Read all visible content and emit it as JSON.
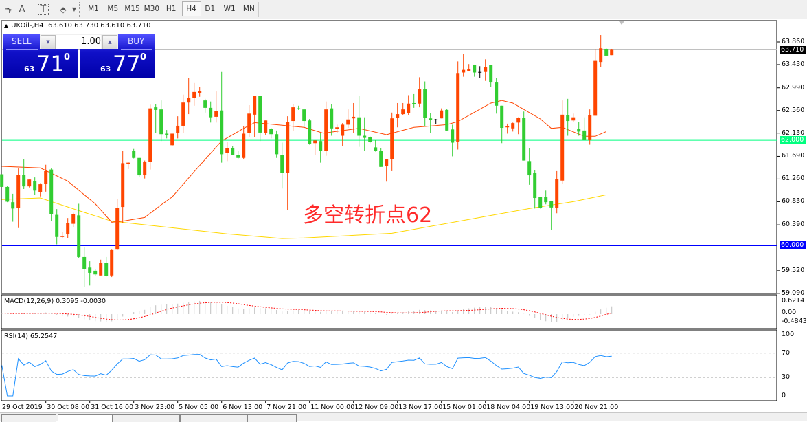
{
  "toolbar": {
    "icons": [
      "period-separator-icon",
      "text-icon",
      "text-label-icon",
      "arrows-icon"
    ],
    "text_icon_glyph": "A",
    "label_icon_glyph": "T",
    "timeframes": [
      "M1",
      "M5",
      "M15",
      "M30",
      "H1",
      "H4",
      "D1",
      "W1",
      "MN"
    ],
    "active_timeframe": "H4"
  },
  "chart": {
    "symbol": "UKOil-,H4",
    "ohlc_text": "63.610 63.730 63.610 63.710"
  },
  "trade_panel": {
    "sell_label": "SELL",
    "buy_label": "BUY",
    "lot": "1.00",
    "sell_big": "71",
    "sell_small": "63",
    "sell_sup": "0",
    "buy_big": "77",
    "buy_small": "63",
    "buy_sup": "0"
  },
  "annotation": "多空转折点62",
  "colors": {
    "bull": "#ff4500",
    "bear": "#32cd32",
    "ma_fast": "#ff4500",
    "ma_slow": "#ffd700",
    "level_62": "#00ff7f",
    "level_60": "#0000ff",
    "panel_bg": "#0000a8"
  },
  "chart_data": {
    "type": "candlestick",
    "price_axis": {
      "ticks": [
        "63.860",
        "63.430",
        "62.990",
        "62.560",
        "62.130",
        "61.690",
        "61.260",
        "60.830",
        "60.390",
        "59.520",
        "59.090"
      ],
      "range": [
        59.09,
        63.86
      ]
    },
    "price_tags": [
      {
        "value": "63.710",
        "kind": "bid"
      },
      {
        "value": "62.000",
        "kind": "level_62"
      },
      {
        "value": "60.000",
        "kind": "level_60"
      }
    ],
    "horizontal_lines": [
      {
        "price": 62.0,
        "color": "#00ff7f"
      },
      {
        "price": 60.0,
        "color": "#0000ff"
      },
      {
        "price": 63.71,
        "color": "#c0c0c0"
      }
    ],
    "time_labels": [
      "29 Oct 2019",
      "30 Oct 08:00",
      "31 Oct 16:00",
      "3 Nov 23:00",
      "5 Nov 05:00",
      "6 Nov 13:00",
      "7 Nov 21:00",
      "11 Nov 00:00",
      "12 Nov 09:00",
      "13 Nov 17:00",
      "15 Nov 01:00",
      "18 Nov 04:00",
      "19 Nov 13:00",
      "20 Nov 21:00"
    ],
    "candles_ohlc": [
      [
        61.35,
        61.35,
        61.11,
        61.11
      ],
      [
        61.11,
        61.13,
        60.82,
        60.83
      ],
      [
        60.82,
        60.98,
        60.45,
        60.7
      ],
      [
        60.71,
        61.46,
        60.33,
        61.34
      ],
      [
        61.34,
        61.63,
        61.07,
        61.12
      ],
      [
        61.12,
        61.25,
        61.1,
        61.25
      ],
      [
        61.22,
        61.29,
        60.96,
        61.04
      ],
      [
        61.01,
        61.18,
        60.93,
        61.16
      ],
      [
        61.17,
        61.53,
        61.02,
        61.41
      ],
      [
        61.44,
        61.46,
        60.46,
        60.59
      ],
      [
        60.58,
        60.69,
        60.02,
        60.16
      ],
      [
        60.16,
        60.26,
        60.13,
        60.18
      ],
      [
        60.21,
        60.52,
        60.14,
        60.42
      ],
      [
        60.41,
        60.62,
        60.34,
        60.59
      ],
      [
        60.57,
        60.79,
        59.76,
        59.78
      ],
      [
        59.78,
        59.96,
        59.21,
        59.55
      ],
      [
        59.58,
        59.7,
        59.24,
        59.48
      ],
      [
        59.52,
        59.55,
        59.42,
        59.45
      ],
      [
        59.43,
        59.73,
        59.43,
        59.67
      ],
      [
        59.67,
        59.78,
        59.41,
        59.42
      ],
      [
        59.43,
        59.92,
        59.4,
        59.91
      ],
      [
        59.92,
        60.88,
        59.91,
        60.71
      ],
      [
        60.73,
        61.8,
        60.42,
        61.56
      ],
      [
        61.55,
        61.59,
        61.45,
        61.57
      ],
      [
        61.79,
        61.83,
        61.65,
        61.66
      ],
      [
        61.66,
        61.66,
        61.3,
        61.33
      ],
      [
        61.34,
        61.61,
        61.27,
        61.59
      ],
      [
        61.58,
        62.67,
        61.44,
        62.6
      ],
      [
        62.62,
        62.68,
        62.13,
        62.57
      ],
      [
        62.58,
        62.75,
        61.98,
        62.11
      ],
      [
        62.12,
        62.19,
        62.03,
        62.1
      ],
      [
        61.9,
        62.12,
        61.89,
        62.12
      ],
      [
        62.13,
        62.45,
        62.03,
        62.27
      ],
      [
        62.27,
        62.86,
        62.13,
        62.71
      ],
      [
        62.71,
        63.17,
        62.49,
        62.8
      ],
      [
        62.8,
        63.08,
        62.65,
        62.91
      ],
      [
        62.89,
        63.0,
        62.82,
        62.93
      ],
      [
        62.75,
        62.78,
        62.52,
        62.61
      ],
      [
        62.61,
        62.73,
        62.33,
        62.43
      ],
      [
        62.44,
        62.92,
        62.33,
        62.55
      ],
      [
        62.56,
        63.29,
        61.57,
        61.73
      ],
      [
        61.75,
        61.97,
        61.6,
        61.84
      ],
      [
        61.84,
        61.88,
        61.72,
        61.72
      ],
      [
        61.72,
        61.8,
        61.63,
        61.66
      ],
      [
        61.66,
        62.26,
        61.63,
        62.12
      ],
      [
        62.13,
        62.66,
        62.05,
        62.5
      ],
      [
        62.48,
        62.83,
        62.05,
        62.83
      ],
      [
        62.83,
        62.83,
        61.98,
        62.14
      ],
      [
        62.13,
        62.37,
        62.1,
        62.37
      ],
      [
        62.21,
        62.23,
        62.03,
        62.11
      ],
      [
        62.11,
        62.18,
        61.66,
        61.73
      ],
      [
        61.72,
        61.95,
        61.08,
        61.37
      ],
      [
        61.37,
        62.45,
        60.67,
        62.34
      ],
      [
        62.36,
        62.68,
        62.17,
        62.62
      ],
      [
        62.6,
        62.65,
        62.57,
        62.59
      ],
      [
        62.58,
        62.58,
        62.24,
        62.36
      ],
      [
        62.37,
        62.4,
        61.91,
        61.92
      ],
      [
        61.94,
        61.99,
        61.71,
        61.99
      ],
      [
        61.98,
        62.13,
        61.57,
        61.79
      ],
      [
        61.79,
        62.73,
        61.7,
        62.58
      ],
      [
        62.6,
        62.68,
        62.08,
        62.22
      ],
      [
        62.21,
        62.29,
        62.13,
        62.24
      ],
      [
        62.08,
        62.32,
        61.88,
        62.29
      ],
      [
        62.29,
        62.58,
        62.23,
        62.39
      ],
      [
        62.41,
        62.7,
        62.13,
        62.44
      ],
      [
        62.43,
        62.83,
        61.87,
        62.08
      ],
      [
        62.08,
        62.43,
        61.8,
        62.04
      ],
      [
        62.05,
        62.07,
        61.94,
        61.96
      ],
      [
        61.86,
        62.0,
        61.78,
        61.79
      ],
      [
        61.8,
        61.85,
        61.49,
        61.49
      ],
      [
        61.5,
        61.64,
        61.21,
        61.63
      ],
      [
        61.64,
        62.52,
        61.41,
        62.41
      ],
      [
        62.42,
        62.7,
        62.24,
        62.49
      ],
      [
        62.49,
        62.7,
        62.47,
        62.58
      ],
      [
        62.51,
        62.85,
        62.47,
        62.69
      ],
      [
        62.7,
        62.87,
        62.61,
        62.68
      ],
      [
        62.69,
        63.19,
        62.62,
        62.96
      ],
      [
        62.96,
        63.11,
        62.26,
        62.42
      ],
      [
        62.41,
        62.51,
        62.13,
        62.38
      ],
      [
        62.39,
        62.4,
        62.3,
        62.39
      ],
      [
        62.41,
        62.6,
        62.41,
        62.56
      ],
      [
        62.57,
        62.59,
        62.17,
        62.18
      ],
      [
        62.2,
        62.29,
        61.69,
        61.95
      ],
      [
        61.97,
        63.49,
        61.82,
        63.27
      ],
      [
        63.28,
        63.63,
        63.2,
        63.33
      ],
      [
        63.3,
        63.44,
        63.3,
        63.35
      ],
      [
        63.43,
        63.43,
        63.2,
        63.28
      ],
      [
        63.28,
        63.4,
        63.18,
        63.29
      ],
      [
        63.29,
        63.53,
        63.12,
        63.39
      ],
      [
        63.42,
        63.43,
        63.0,
        63.09
      ],
      [
        63.09,
        63.17,
        62.5,
        62.65
      ],
      [
        62.65,
        62.65,
        61.94,
        62.23
      ],
      [
        62.24,
        62.31,
        62.12,
        62.26
      ],
      [
        62.22,
        62.33,
        62.16,
        62.32
      ],
      [
        62.33,
        62.43,
        62.11,
        62.42
      ],
      [
        62.42,
        62.54,
        61.61,
        61.61
      ],
      [
        61.6,
        61.84,
        61.15,
        61.33
      ],
      [
        61.37,
        61.43,
        60.7,
        60.9
      ],
      [
        60.92,
        60.92,
        60.7,
        60.71
      ],
      [
        60.92,
        61.04,
        60.78,
        60.82
      ],
      [
        60.84,
        60.84,
        60.29,
        60.72
      ],
      [
        60.71,
        61.41,
        60.61,
        61.26
      ],
      [
        61.23,
        62.75,
        61.17,
        62.48
      ],
      [
        62.47,
        62.78,
        62.08,
        62.36
      ],
      [
        62.37,
        62.5,
        62.34,
        62.43
      ],
      [
        62.21,
        62.34,
        62.08,
        62.16
      ],
      [
        62.18,
        62.43,
        62.01,
        62.01
      ],
      [
        62.01,
        62.58,
        61.91,
        62.47
      ],
      [
        62.46,
        63.73,
        62.46,
        63.5
      ],
      [
        63.48,
        63.99,
        63.38,
        63.74
      ],
      [
        63.73,
        63.74,
        63.6,
        63.6
      ],
      [
        63.61,
        63.73,
        63.61,
        63.71
      ]
    ],
    "doji_black_candles": [
      80,
      88
    ],
    "ma_fast_points": [
      [
        1,
        61.5
      ],
      [
        8,
        61.47
      ],
      [
        13,
        61.22
      ],
      [
        18,
        60.79
      ],
      [
        21,
        60.44
      ],
      [
        23,
        60.46
      ],
      [
        27,
        60.53
      ],
      [
        30,
        60.77
      ],
      [
        32,
        60.92
      ],
      [
        36,
        61.4
      ],
      [
        41,
        61.98
      ],
      [
        45,
        62.22
      ],
      [
        47,
        62.33
      ],
      [
        53,
        62.27
      ],
      [
        56,
        62.24
      ],
      [
        59.5,
        62.13
      ],
      [
        66,
        62.22
      ],
      [
        71,
        62.1
      ],
      [
        76,
        62.24
      ],
      [
        82,
        62.29
      ],
      [
        84,
        62.35
      ],
      [
        90,
        62.7
      ],
      [
        92,
        62.75
      ],
      [
        94,
        62.7
      ],
      [
        99,
        62.4
      ],
      [
        101,
        62.22
      ],
      [
        103,
        62.24
      ],
      [
        107,
        62.07
      ],
      [
        109,
        62.07
      ],
      [
        111,
        62.16
      ]
    ],
    "ma_slow_points": [
      [
        1,
        60.87
      ],
      [
        8,
        60.9
      ],
      [
        15,
        60.66
      ],
      [
        21,
        60.46
      ],
      [
        29,
        60.37
      ],
      [
        42,
        60.22
      ],
      [
        52,
        60.13
      ],
      [
        56,
        60.14
      ],
      [
        72,
        60.23
      ],
      [
        88,
        60.53
      ],
      [
        97,
        60.7
      ],
      [
        105,
        60.83
      ],
      [
        111,
        60.96
      ]
    ],
    "macd": {
      "label": "MACD(12,26,9) 0.3095 -0.0030",
      "axis": [
        "0.6214",
        "0.00",
        "-0.4843"
      ],
      "range": [
        -0.4843,
        0.6214
      ]
    },
    "rsi": {
      "label": "RSI(14) 65.2547",
      "axis": [
        "100",
        "70",
        "30",
        "0"
      ],
      "levels": [
        70,
        30
      ]
    }
  }
}
